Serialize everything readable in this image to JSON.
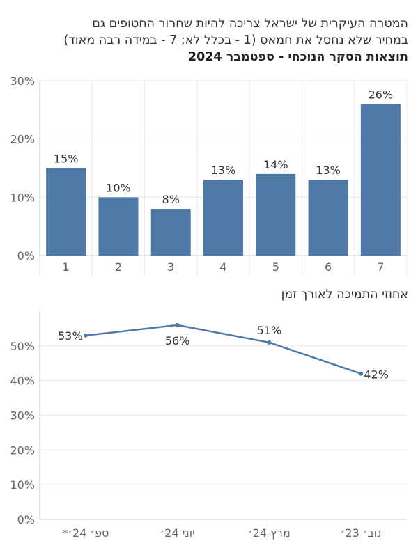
{
  "header": {
    "title_line1": "המטרה העיקרית של ישראל צריכה להיות שחרור החטופים גם",
    "title_line2": "במחיר שלא נחסל את חמאס (1 - בכלל לא; 7 - במידה רבה מאוד)",
    "subtitle": "תוצאות הסקר הנוכחי - ספטמבר 2024"
  },
  "chart2_header": {
    "title": "אחוזי התמיכה לאורך זמן"
  },
  "colors": {
    "bar": "#4e79a7",
    "line": "#4e79a7",
    "grid": "#e8e8e8",
    "axis": "#cccccc"
  },
  "chart_data": [
    {
      "type": "bar",
      "categories": [
        "1",
        "2",
        "3",
        "4",
        "5",
        "6",
        "7"
      ],
      "values": [
        15,
        10,
        8,
        13,
        14,
        13,
        26
      ],
      "data_labels": [
        "15%",
        "10%",
        "8%",
        "13%",
        "14%",
        "13%",
        "26%"
      ],
      "ylim": [
        0,
        30
      ],
      "yticks": [
        0,
        10,
        20,
        30
      ],
      "ytick_labels": [
        "0%",
        "10%",
        "20%",
        "30%"
      ],
      "grid": true
    },
    {
      "type": "line",
      "categories": [
        "ספ׳ 24׳*",
        "יוני 24׳",
        "מרץ 24׳",
        "נוב׳ 23׳"
      ],
      "values": [
        53,
        56,
        51,
        42
      ],
      "data_labels": [
        "53%",
        "56%",
        "51%",
        "42%"
      ],
      "ylim": [
        0,
        60
      ],
      "yticks": [
        0,
        10,
        20,
        30,
        40,
        50
      ],
      "ytick_labels": [
        "0%",
        "10%",
        "20%",
        "30%",
        "40%",
        "50%"
      ],
      "grid": true
    }
  ]
}
